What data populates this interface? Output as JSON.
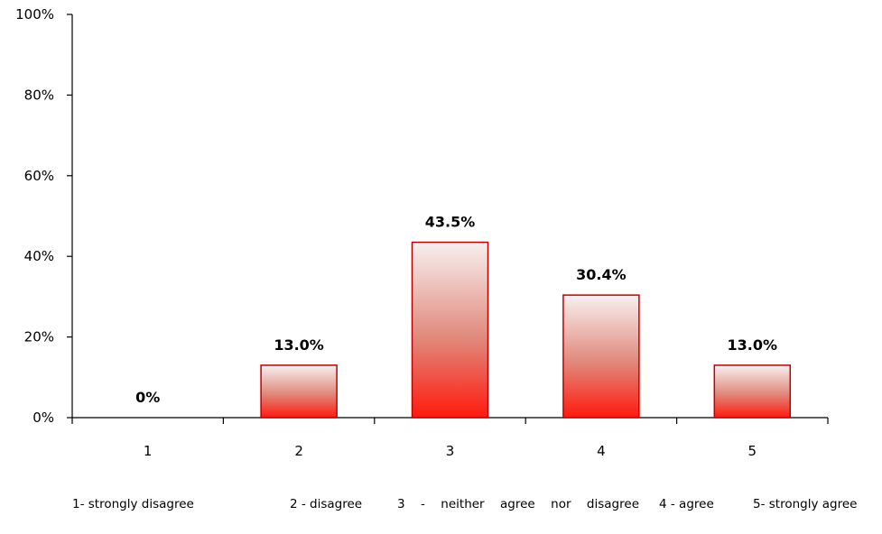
{
  "chart_data": {
    "type": "bar",
    "categories": [
      "1",
      "2",
      "3",
      "4",
      "5"
    ],
    "values": [
      0,
      13.0,
      43.5,
      30.4,
      13.0
    ],
    "data_labels": [
      "0%",
      "13.0%",
      "43.5%",
      "30.4%",
      "13.0%"
    ],
    "y_ticks": [
      "0%",
      "20%",
      "40%",
      "60%",
      "80%",
      "100%"
    ],
    "ylim": [
      0,
      100
    ],
    "grid": false,
    "legend_placement": "bottom",
    "bar_fill_top": "#f7f0f0",
    "bar_fill_bottom": "#ff1a0d",
    "bar_stroke": "#c00000",
    "legend": [
      "1- strongly disagree",
      "2 - disagree",
      "3  -  neither  agree  nor disagree",
      "4 - agree",
      "5- strongly agree"
    ]
  }
}
